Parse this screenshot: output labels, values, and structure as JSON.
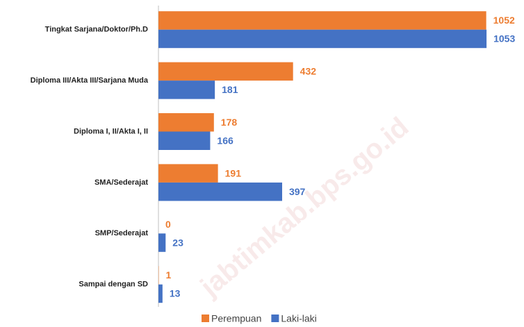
{
  "chart_data": {
    "type": "hbar",
    "watermark": "jabtimkab.bps.go.id",
    "categories": [
      "Tingkat Sarjana/Doktor/Ph.D",
      "Diploma III/Akta III/Sarjana Muda",
      "Diploma I, II/Akta I, II",
      "SMA/Sederajat",
      "SMP/Sederajat",
      "Sampai dengan SD"
    ],
    "series": [
      {
        "name": "Perempuan",
        "color": "#ed7d31",
        "values": [
          1052,
          432,
          178,
          191,
          0,
          1
        ]
      },
      {
        "name": "Laki-laki",
        "color": "#4472c4",
        "values": [
          1053,
          181,
          166,
          397,
          23,
          13
        ]
      }
    ],
    "xlim": [
      0,
      1200
    ],
    "legend": "bottom"
  }
}
